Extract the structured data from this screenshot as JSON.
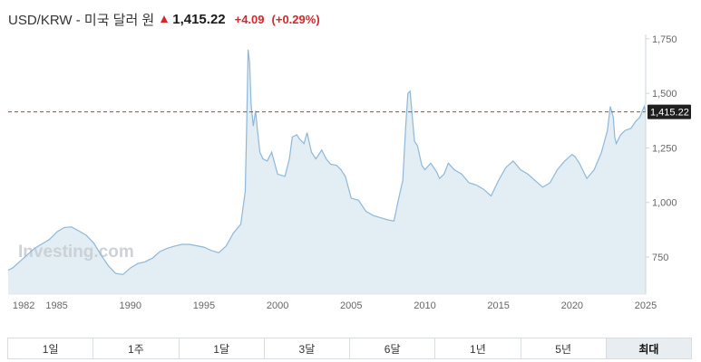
{
  "header": {
    "pair": "USD/KRW - 미국 달러 원",
    "price": "1,415.22",
    "change": "+4.09",
    "change_pct": "(+0.29%)"
  },
  "colors": {
    "up": "#d6262b",
    "line": "#8fb8d8",
    "area": "#e2edf4",
    "last_label_bg": "#1f1f1f",
    "ref_line": "#c0392b"
  },
  "watermark": "Investing.com",
  "ranges": {
    "items": [
      "1일",
      "1주",
      "1달",
      "3달",
      "6달",
      "1년",
      "5년",
      "최대"
    ],
    "active_index": 7
  },
  "chart_data": {
    "type": "area",
    "title": "",
    "xlabel": "",
    "ylabel": "",
    "x_ticks": [
      "1982",
      "1985",
      "1990",
      "1995",
      "2000",
      "2005",
      "2010",
      "2015",
      "2020",
      "2025"
    ],
    "y_ticks": [
      "750",
      "1,000",
      "1,250",
      "1,500",
      "1,750"
    ],
    "xlim": [
      1981.7,
      2025.0
    ],
    "ylim": [
      580,
      1770
    ],
    "y_axis_side": "right",
    "grid": false,
    "last_value": 1415.22,
    "last_value_label": "1,415.22",
    "series": [
      {
        "x": [
          1981.7,
          1982.0,
          1982.5,
          1983.0,
          1983.5,
          1984.0,
          1984.5,
          1985.0,
          1985.5,
          1986.0,
          1986.5,
          1987.0,
          1987.5,
          1988.0,
          1988.5,
          1989.0,
          1989.5,
          1990.0,
          1990.5,
          1991.0,
          1991.5,
          1992.0,
          1992.5,
          1993.0,
          1993.5,
          1994.0,
          1994.5,
          1995.0,
          1995.5,
          1996.0,
          1996.5,
          1997.0,
          1997.5,
          1997.8,
          1997.9,
          1998.0,
          1998.1,
          1998.2,
          1998.35,
          1998.5,
          1998.65,
          1998.8,
          1999.0,
          1999.3,
          1999.6,
          2000.0,
          2000.5,
          2000.8,
          2001.0,
          2001.3,
          2001.5,
          2001.8,
          2002.0,
          2002.3,
          2002.6,
          2003.0,
          2003.3,
          2003.6,
          2004.0,
          2004.3,
          2004.6,
          2005.0,
          2005.5,
          2006.0,
          2006.5,
          2007.0,
          2007.5,
          2007.9,
          2008.2,
          2008.5,
          2008.7,
          2008.85,
          2009.0,
          2009.15,
          2009.3,
          2009.5,
          2009.8,
          2010.0,
          2010.4,
          2010.8,
          2011.0,
          2011.3,
          2011.6,
          2012.0,
          2012.5,
          2013.0,
          2013.5,
          2014.0,
          2014.5,
          2015.0,
          2015.5,
          2016.0,
          2016.5,
          2017.0,
          2017.5,
          2018.0,
          2018.5,
          2019.0,
          2019.5,
          2020.0,
          2020.2,
          2020.5,
          2021.0,
          2021.5,
          2022.0,
          2022.4,
          2022.6,
          2022.8,
          2022.9,
          2023.0,
          2023.3,
          2023.6,
          2024.0,
          2024.3,
          2024.6,
          2024.9,
          2025.0
        ],
        "values": [
          690,
          700,
          730,
          760,
          790,
          810,
          830,
          865,
          885,
          888,
          870,
          850,
          815,
          760,
          710,
          675,
          670,
          700,
          720,
          728,
          745,
          775,
          790,
          800,
          808,
          808,
          802,
          795,
          780,
          770,
          800,
          860,
          900,
          1050,
          1350,
          1700,
          1640,
          1450,
          1350,
          1420,
          1320,
          1230,
          1200,
          1190,
          1230,
          1130,
          1120,
          1200,
          1300,
          1310,
          1290,
          1270,
          1320,
          1230,
          1200,
          1240,
          1200,
          1175,
          1170,
          1150,
          1120,
          1020,
          1010,
          960,
          940,
          930,
          920,
          915,
          1010,
          1100,
          1350,
          1500,
          1510,
          1390,
          1280,
          1260,
          1170,
          1150,
          1180,
          1140,
          1110,
          1130,
          1180,
          1150,
          1130,
          1090,
          1080,
          1060,
          1030,
          1100,
          1160,
          1190,
          1150,
          1130,
          1100,
          1070,
          1090,
          1150,
          1190,
          1220,
          1210,
          1180,
          1110,
          1150,
          1230,
          1330,
          1440,
          1390,
          1300,
          1270,
          1310,
          1330,
          1340,
          1370,
          1390,
          1440,
          1415
        ]
      }
    ]
  }
}
